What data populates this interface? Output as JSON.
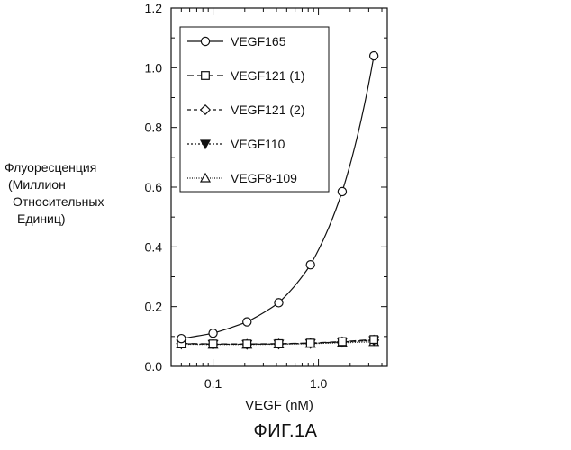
{
  "chart_data": {
    "type": "line",
    "xscale": "log",
    "xlabel": "VEGF (nM)",
    "ylabel_lines": [
      "Флуоресценция",
      "(Миллион",
      "Относительных",
      "Единиц)"
    ],
    "xlim": [
      0.04,
      4.5
    ],
    "ylim": [
      0,
      1.2
    ],
    "x_ticks": [
      0.1,
      1.0
    ],
    "x_tick_labels": [
      "0.1",
      "1.0"
    ],
    "y_ticks": [
      0.0,
      0.2,
      0.4,
      0.6,
      0.8,
      1.0,
      1.2
    ],
    "y_tick_labels": [
      "0.0",
      "0.2",
      "0.4",
      "0.6",
      "0.8",
      "1.0",
      "1.2"
    ],
    "grid": false,
    "legend_position": "top-left",
    "series": [
      {
        "name": "VEGF165",
        "marker": "circle",
        "line": "solid",
        "x": [
          0.05,
          0.1,
          0.21,
          0.42,
          0.84,
          1.68,
          3.36
        ],
        "y": [
          0.093,
          0.111,
          0.149,
          0.213,
          0.34,
          0.585,
          1.04
        ]
      },
      {
        "name": "VEGF121 (1)",
        "marker": "square",
        "line": "dash",
        "x": [
          0.05,
          0.1,
          0.21,
          0.42,
          0.84,
          1.68,
          3.36
        ],
        "y": [
          0.077,
          0.075,
          0.075,
          0.076,
          0.078,
          0.083,
          0.09
        ]
      },
      {
        "name": "VEGF121 (2)",
        "marker": "diamond",
        "line": "shortdash",
        "x": [
          0.05,
          0.1,
          0.21,
          0.42,
          0.84,
          1.68,
          3.36
        ],
        "y": [
          0.076,
          0.074,
          0.074,
          0.075,
          0.077,
          0.082,
          0.088
        ]
      },
      {
        "name": "VEGF110",
        "marker": "triangle-down-filled",
        "line": "dot",
        "x": [
          0.05,
          0.1,
          0.21,
          0.42,
          0.84,
          1.68,
          3.36
        ],
        "y": [
          0.075,
          0.074,
          0.074,
          0.075,
          0.077,
          0.081,
          0.087
        ]
      },
      {
        "name": "VEGF8-109",
        "marker": "triangle-up",
        "line": "finedot",
        "x": [
          0.05,
          0.1,
          0.21,
          0.42,
          0.84,
          1.68,
          3.36
        ],
        "y": [
          0.074,
          0.073,
          0.073,
          0.074,
          0.076,
          0.079,
          0.082
        ]
      }
    ]
  },
  "figure_caption": "ФИГ.1А"
}
